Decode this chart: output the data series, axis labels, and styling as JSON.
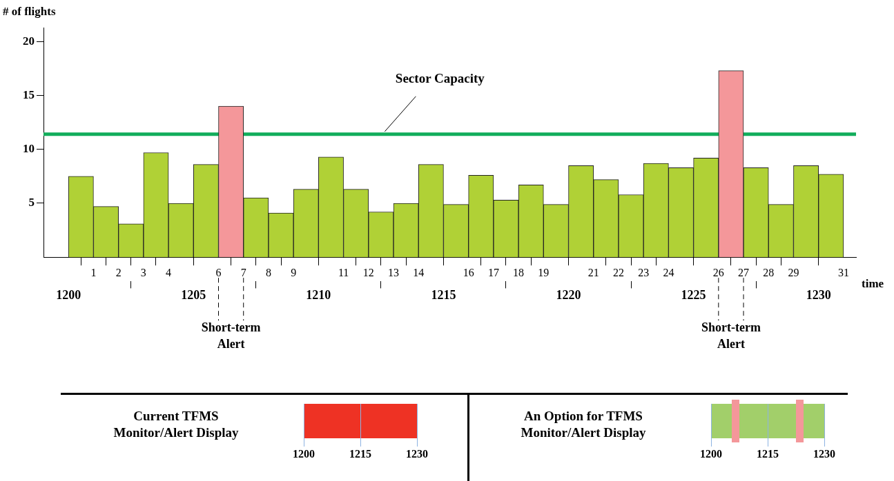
{
  "chart_data": [
    {
      "type": "histogram",
      "ylabel": "# of flights",
      "xlabel": "time",
      "bins": [
        1200,
        1201,
        1202,
        1203,
        1204,
        1205,
        1206,
        1207,
        1208,
        1209,
        1210,
        1211,
        1212,
        1213,
        1214,
        1215,
        1216,
        1217,
        1218,
        1219,
        1220,
        1221,
        1222,
        1223,
        1224,
        1225,
        1226,
        1227,
        1228,
        1229,
        1230,
        1231
      ],
      "values": [
        7.5,
        4.7,
        3.1,
        9.7,
        5.0,
        8.6,
        14.0,
        5.5,
        4.1,
        6.3,
        9.3,
        6.3,
        4.2,
        5.0,
        8.6,
        4.9,
        7.6,
        5.3,
        6.7,
        4.9,
        8.5,
        7.2,
        5.8,
        8.7,
        8.3,
        9.2,
        17.3,
        8.3,
        4.9,
        8.5,
        7.7
      ],
      "colors": [
        "#b0d136",
        "#b0d136",
        "#b0d136",
        "#b0d136",
        "#b0d136",
        "#b0d136",
        "#f4979a",
        "#b0d136",
        "#b0d136",
        "#b0d136",
        "#b0d136",
        "#b0d136",
        "#b0d136",
        "#b0d136",
        "#b0d136",
        "#b0d136",
        "#b0d136",
        "#b0d136",
        "#b0d136",
        "#b0d136",
        "#b0d136",
        "#b0d136",
        "#b0d136",
        "#b0d136",
        "#b0d136",
        "#b0d136",
        "#f4979a",
        "#b0d136",
        "#b0d136",
        "#b0d136",
        "#b0d136"
      ],
      "ylim": [
        0,
        21.3
      ],
      "yticks": [
        5,
        10,
        15,
        20
      ],
      "xlim": [
        1199,
        1231.5
      ],
      "xticks": [
        1200,
        1205,
        1210,
        1215,
        1220,
        1225,
        1230
      ],
      "x2lim": [
        -1,
        31.5
      ],
      "x2ticks": [
        1,
        2,
        3,
        4,
        6,
        7,
        8,
        9,
        11,
        12,
        13,
        14,
        16,
        17,
        18,
        19,
        21,
        22,
        23,
        24,
        26,
        27,
        28,
        29,
        31
      ],
      "ref_lines": [
        {
          "axis": "y",
          "value": 11.4,
          "label": "Sector Capacity",
          "color": "#12ad5b"
        }
      ],
      "annotations": [
        "Short-term Alert",
        "Short-term Alert"
      ]
    },
    {
      "type": "other",
      "title": "Current TFMS Monitor/Alert Display",
      "annotations": [
        "1200",
        "1215",
        "1230"
      ]
    },
    {
      "type": "other",
      "title": "An Option for TFMS Monitor/Alert Display",
      "annotations": [
        "1200",
        "1215",
        "1230"
      ]
    }
  ]
}
